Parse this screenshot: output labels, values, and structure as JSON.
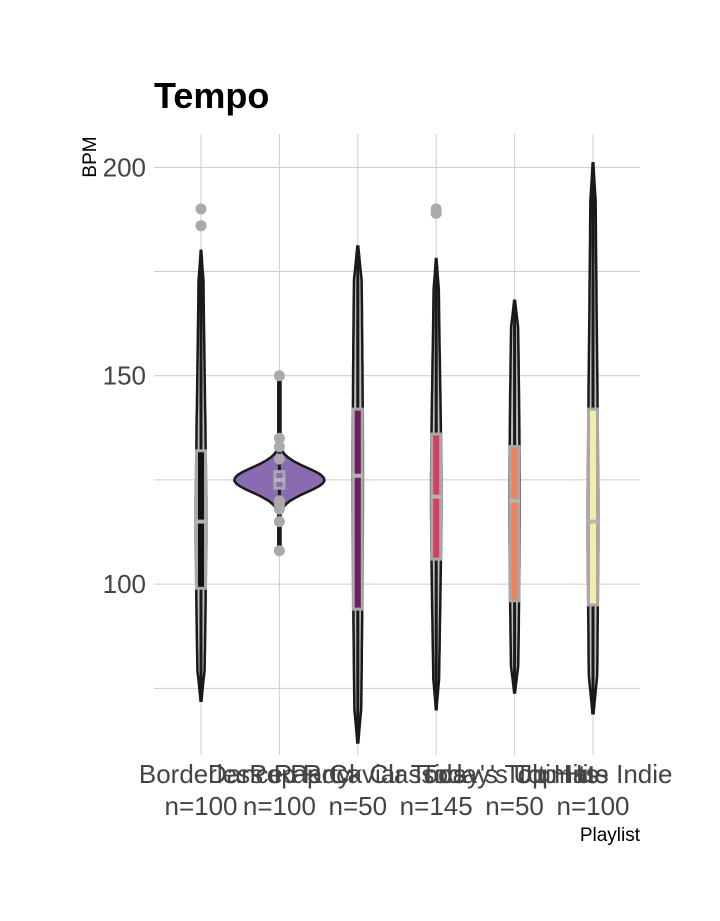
{
  "chart_data": {
    "type": "violin",
    "title": "Tempo",
    "ylabel": "BPM",
    "xlabel": "Playlist",
    "ylim": [
      59,
      208
    ],
    "yticks": [
      100,
      150,
      200
    ],
    "grid": true,
    "legend": "none",
    "colors": {
      "background": "#ffffff",
      "grid": "#cccccc",
      "outline": "#1a1a1a",
      "boxline": "#a8a8a8",
      "outlier": "#aaaaaa"
    },
    "categories": [
      {
        "name": "Borderless",
        "n_label": "n=100",
        "fill": "#121212",
        "min": 72,
        "q1": 99,
        "median": 115,
        "q3": 132,
        "max": 180,
        "max_width": 0.06,
        "outliers": [
          186,
          190
        ]
      },
      {
        "name": "Dance Party",
        "n_label": "n=100",
        "fill": "#8a6ab0",
        "min": 108,
        "q1": 123,
        "median": 125,
        "q3": 127,
        "max": 150,
        "max_width": 0.53,
        "outliers": [
          108,
          115,
          118,
          119,
          120,
          130,
          133,
          135,
          150
        ]
      },
      {
        "name": "Pop Rock Classics",
        "n_label": "n=50",
        "fill": "#6b1f5e",
        "min": 62,
        "q1": 94,
        "median": 126,
        "q3": 142,
        "max": 181,
        "max_width": 0.06,
        "outliers": []
      },
      {
        "name": "Rap Caviar Today's Top Hits",
        "n_label": "n=145",
        "fill": "#d63f5d",
        "min": 70,
        "q1": 106,
        "median": 121,
        "q3": 136,
        "max": 178,
        "max_width": 0.06,
        "outliers": [
          189,
          190
        ]
      },
      {
        "name": "Today's Top Hits",
        "n_label": "n=50",
        "fill": "#f0825a",
        "min": 74,
        "q1": 96,
        "median": 120,
        "q3": 133,
        "max": 168,
        "max_width": 0.06,
        "outliers": []
      },
      {
        "name": "Ultimate Indie",
        "n_label": "n=100",
        "fill": "#f4ecab",
        "min": 69,
        "q1": 95,
        "median": 115,
        "q3": 142,
        "max": 201,
        "max_width": 0.06,
        "outliers": []
      }
    ],
    "tick_labels_rendered": [
      "Borderless",
      "Dance Party",
      "Pop Rock Classics",
      "Rap Caviar Today's Top Hits",
      "Today's Top Hits",
      "Ultimate Indie"
    ]
  }
}
